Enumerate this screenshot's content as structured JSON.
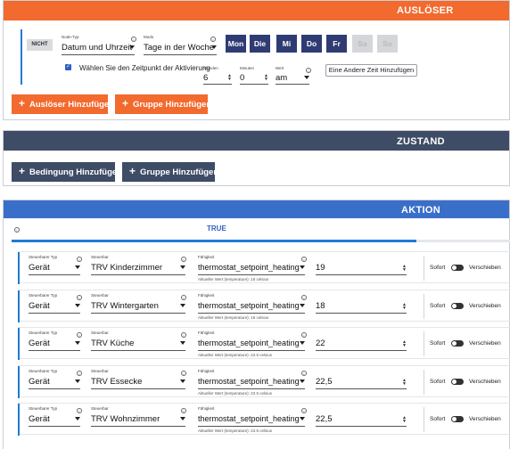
{
  "trigger": {
    "header": "AUSLÖSER",
    "nicht": "NICHT",
    "node_type_label": "Node-Typ",
    "node_type_value": "Datum und Uhrzeit",
    "mode_label": "Modo",
    "mode_value": "Tage in der Woche",
    "days": [
      {
        "label": "Mon",
        "active": true
      },
      {
        "label": "Die",
        "active": true
      },
      {
        "label": "Mi",
        "active": true
      },
      {
        "label": "Do",
        "active": true
      },
      {
        "label": "Fr",
        "active": true
      },
      {
        "label": "Sa",
        "active": false
      },
      {
        "label": "So",
        "active": false
      }
    ],
    "time_checkbox_label": "Wählen Sie den Zeitpunkt der Aktivierung",
    "hours_label": "Stunden",
    "hours_value": "6",
    "minutes_label": "Minuten",
    "minutes_value": "0",
    "ampm_label": "Wert",
    "ampm_value": "am",
    "add_time_button": "Eine Andere Zeit Hinzufügen",
    "add_trigger_button": "Auslöser Hinzufügen",
    "add_group_button": "Gruppe Hinzufügen"
  },
  "condition": {
    "header": "ZUSTAND",
    "add_condition_button": "Bedingung Hinzufügen",
    "add_group_button": "Gruppe Hinzufügen"
  },
  "action": {
    "header": "AKTION",
    "tab_true": "TRUE",
    "progress_fraction": 0.81,
    "col_type_label": "Steuerbarer Typ",
    "col_device_label": "Steuerbar",
    "col_ability_label": "Fähigkeit",
    "now_label": "Sofort",
    "delay_label": "Verschieben",
    "rows": [
      {
        "type": "Gerät",
        "device": "TRV Kinderzimmer",
        "ability": "thermostat_setpoint_heating",
        "value": "19",
        "current": "Aktueller Wert (temperature): 16 celsius"
      },
      {
        "type": "Gerät",
        "device": "TRV Wintergarten",
        "ability": "thermostat_setpoint_heating",
        "value": "18",
        "current": "Aktueller Wert (temperature): 16 celsius"
      },
      {
        "type": "Gerät",
        "device": "TRV Küche",
        "ability": "thermostat_setpoint_heating",
        "value": "22",
        "current": "Aktueller Wert (temperature): 22.5 celsius"
      },
      {
        "type": "Gerät",
        "device": "TRV Essecke",
        "ability": "thermostat_setpoint_heating",
        "value": "22,5",
        "current": "Aktueller Wert (temperature): 22.5 celsius"
      },
      {
        "type": "Gerät",
        "device": "TRV Wohnzimmer",
        "ability": "thermostat_setpoint_heating",
        "value": "22,5",
        "current": "Aktueller Wert (temperature): 22.5 celsius"
      }
    ]
  },
  "colors": {
    "orange": "#f26a2e",
    "navy_header": "#3e4c66",
    "day_active": "#2f3c73",
    "blue_accent": "#1f7bd6"
  }
}
